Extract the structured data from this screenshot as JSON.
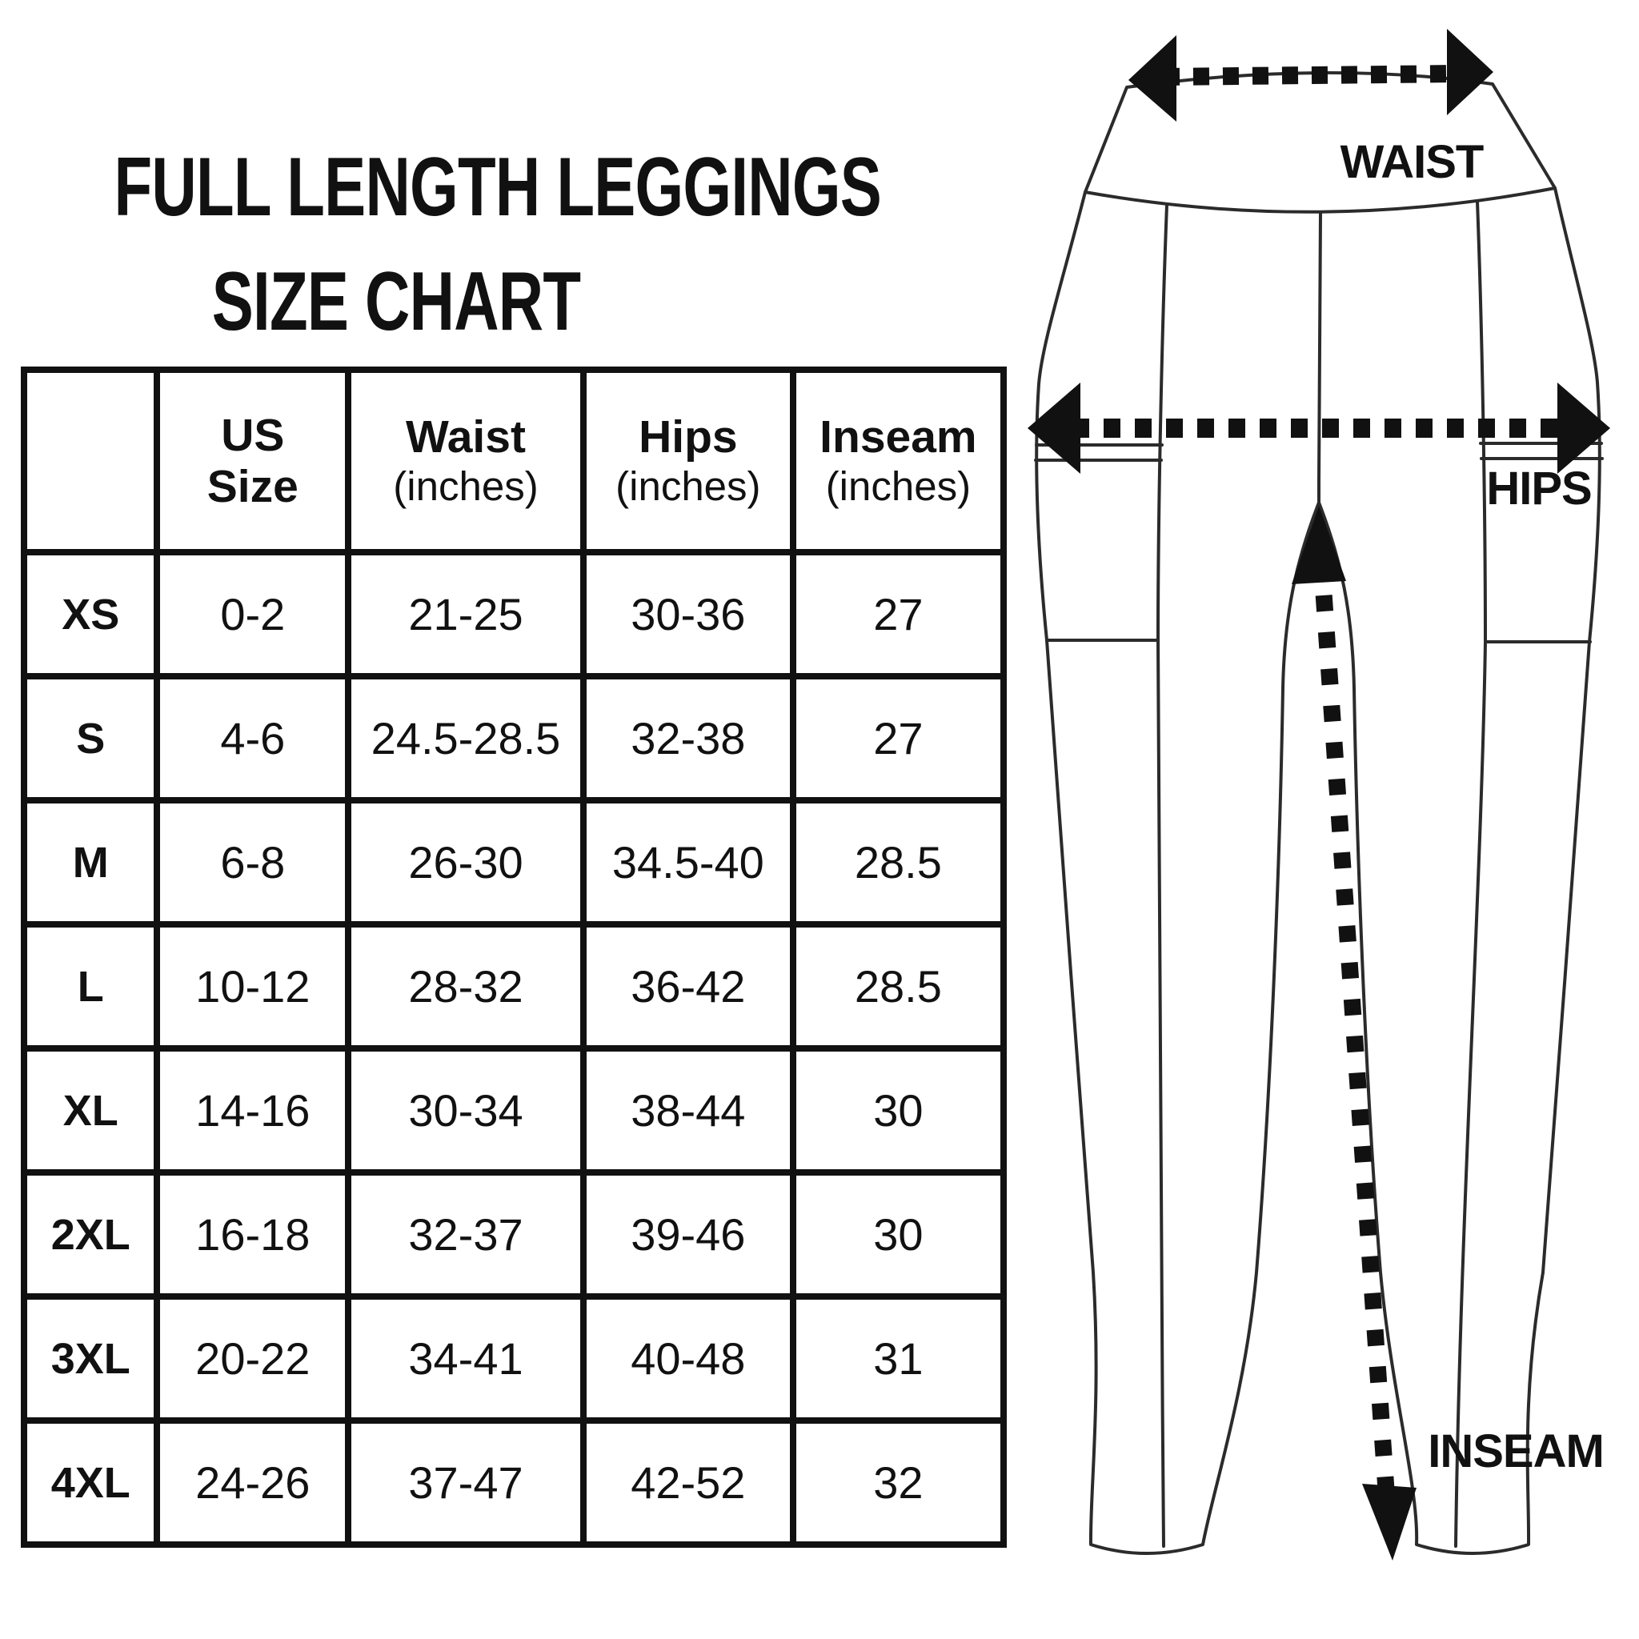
{
  "page": {
    "background": "#ffffff",
    "ink": "#111111"
  },
  "title": {
    "line1": "FULL LENGTH LEGGINGS",
    "line2": "SIZE CHART"
  },
  "table": {
    "header": [
      {
        "title": "",
        "subtitle": ""
      },
      {
        "title": "US",
        "subtitle": "Size"
      },
      {
        "title": "Waist",
        "subtitle": "(inches)"
      },
      {
        "title": "Hips",
        "subtitle": "(inches)"
      },
      {
        "title": "Inseam",
        "subtitle": "(inches)"
      }
    ],
    "rows": [
      {
        "size": "XS",
        "us": "0-2",
        "waist": "21-25",
        "hips": "30-36",
        "inseam": "27"
      },
      {
        "size": "S",
        "us": "4-6",
        "waist": "24.5-28.5",
        "hips": "32-38",
        "inseam": "27"
      },
      {
        "size": "M",
        "us": "6-8",
        "waist": "26-30",
        "hips": "34.5-40",
        "inseam": "28.5"
      },
      {
        "size": "L",
        "us": "10-12",
        "waist": "28-32",
        "hips": "36-42",
        "inseam": "28.5"
      },
      {
        "size": "XL",
        "us": "14-16",
        "waist": "30-34",
        "hips": "38-44",
        "inseam": "30"
      },
      {
        "size": "2XL",
        "us": "16-18",
        "waist": "32-37",
        "hips": "39-46",
        "inseam": "30"
      },
      {
        "size": "3XL",
        "us": "20-22",
        "waist": "34-41",
        "hips": "40-48",
        "inseam": "31"
      },
      {
        "size": "4XL",
        "us": "24-26",
        "waist": "37-47",
        "hips": "42-52",
        "inseam": "32"
      }
    ]
  },
  "diagram": {
    "waist_label": "WAIST",
    "hips_label": "HIPS",
    "inseam_label": "INSEAM"
  }
}
